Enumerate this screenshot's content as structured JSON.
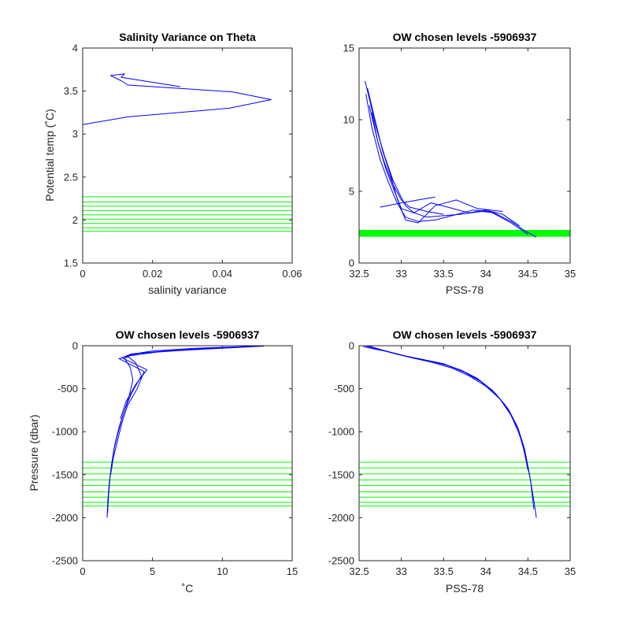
{
  "chart_data": [
    {
      "type": "line",
      "title": "Salinity Variance on Theta",
      "xlabel": "salinity variance",
      "ylabel": "Potential temp (˚C)",
      "xlim": [
        0,
        0.06
      ],
      "ylim": [
        1.5,
        4
      ],
      "xticks": [
        "0",
        "0.02",
        "0.04",
        "0.06"
      ],
      "yticks": [
        "1.5",
        "2",
        "2.5",
        "3",
        "3.5",
        "4"
      ],
      "series": [
        {
          "color": "#0000ff",
          "x": [
            0.0,
            0.0,
            0.0,
            0.0,
            0.0,
            0.0,
            0.0,
            0.0,
            0.0,
            0.0,
            0.0,
            0.0,
            0.0,
            0.0,
            0.0,
            0.013,
            0.042,
            0.054,
            0.043,
            0.013,
            0.011,
            0.008,
            0.012,
            0.011,
            0.028
          ],
          "y": [
            1.78,
            1.86,
            1.9,
            1.95,
            2.0,
            2.05,
            2.1,
            2.15,
            2.2,
            2.25,
            2.4,
            2.6,
            2.8,
            3.0,
            3.11,
            3.2,
            3.3,
            3.4,
            3.49,
            3.57,
            3.62,
            3.68,
            3.7,
            3.66,
            3.55
          ]
        }
      ],
      "hlines": {
        "color": "#00ff00",
        "y": [
          1.87,
          1.91,
          1.96,
          2.01,
          2.06,
          2.11,
          2.16,
          2.21,
          2.27
        ]
      }
    },
    {
      "type": "line",
      "title": "OW chosen levels -5906937",
      "xlabel": "PSS-78",
      "ylabel": "",
      "xlim": [
        32.5,
        35
      ],
      "ylim": [
        0,
        15
      ],
      "xticks": [
        "32.5",
        "33",
        "33.5",
        "34",
        "34.5",
        "35"
      ],
      "yticks": [
        "0",
        "5",
        "10",
        "15"
      ],
      "series": [
        {
          "color": "#0000ff",
          "x": [
            34.6,
            34.45,
            34.3,
            34.1,
            33.95,
            33.7,
            33.5,
            33.3,
            33.15,
            33.05,
            32.98,
            32.9,
            32.8,
            32.7,
            32.62,
            32.57
          ],
          "y": [
            1.8,
            2.3,
            2.9,
            3.5,
            3.6,
            3.4,
            3.3,
            3.2,
            3.5,
            4.0,
            4.8,
            5.8,
            7.5,
            9.5,
            11.5,
            12.7
          ]
        },
        {
          "color": "#0000ff",
          "x": [
            34.5,
            34.3,
            34.05,
            33.85,
            33.6,
            33.4,
            33.2,
            33.05,
            32.95,
            32.85,
            32.75,
            32.65,
            32.58
          ],
          "y": [
            2.0,
            2.8,
            3.6,
            3.7,
            3.3,
            3.0,
            2.9,
            3.2,
            4.2,
            5.6,
            7.2,
            9.5,
            11.8
          ]
        },
        {
          "color": "#0000ff",
          "x": [
            34.4,
            34.2,
            34.0,
            33.8,
            33.55,
            33.35,
            33.15,
            33.0,
            32.92,
            32.82,
            32.72,
            32.62
          ],
          "y": [
            2.6,
            3.4,
            3.7,
            3.5,
            3.9,
            4.2,
            3.5,
            3.8,
            5.0,
            6.5,
            8.5,
            11.0
          ]
        },
        {
          "color": "#0000ff",
          "x": [
            34.2,
            33.9,
            33.65,
            33.4,
            33.2,
            33.05,
            32.95,
            32.88,
            32.78,
            32.68,
            32.6
          ],
          "y": [
            3.6,
            3.8,
            4.4,
            4.0,
            2.8,
            3.0,
            4.5,
            6.0,
            7.8,
            10.2,
            12.2
          ]
        },
        {
          "color": "#0000ff",
          "x": [
            33.5,
            33.3,
            33.1,
            33.0,
            32.9,
            32.8,
            32.72,
            32.65
          ],
          "y": [
            3.4,
            3.6,
            3.9,
            4.4,
            5.5,
            7.0,
            8.5,
            10.5
          ]
        },
        {
          "color": "#0000ff",
          "x": [
            32.75,
            33.0,
            33.2,
            33.4
          ],
          "y": [
            3.9,
            4.2,
            4.4,
            4.6
          ]
        }
      ],
      "hlines": {
        "color": "#00ff00",
        "y": [
          1.87,
          1.91,
          1.96,
          2.01,
          2.06,
          2.11,
          2.16,
          2.21,
          2.27
        ]
      }
    },
    {
      "type": "line",
      "title": "OW chosen levels -5906937",
      "xlabel": "˚C",
      "ylabel": "Pressure (dbar)",
      "xlim": [
        0,
        15
      ],
      "ylim": [
        -2500,
        0
      ],
      "xticks": [
        "0",
        "5",
        "10",
        "15"
      ],
      "yticks": [
        "-2500",
        "-2000",
        "-1500",
        "-1000",
        "-500",
        "0"
      ],
      "series": [
        {
          "color": "#0000ff",
          "x": [
            1.75,
            1.8,
            1.9,
            2.05,
            2.25,
            2.55,
            2.9,
            3.3,
            3.6,
            3.4,
            3.0,
            3.5,
            5.0,
            8.0,
            12.7
          ],
          "y": [
            -2000,
            -1800,
            -1600,
            -1400,
            -1200,
            -1000,
            -800,
            -600,
            -400,
            -250,
            -150,
            -100,
            -60,
            -30,
            -5
          ]
        },
        {
          "color": "#0000ff",
          "x": [
            1.78,
            1.85,
            1.95,
            2.1,
            2.3,
            2.6,
            3.0,
            3.5,
            4.2,
            3.8,
            3.2,
            5.5,
            9.0,
            11.8
          ],
          "y": [
            -1950,
            -1750,
            -1550,
            -1350,
            -1150,
            -950,
            -750,
            -550,
            -350,
            -200,
            -120,
            -70,
            -35,
            -8
          ]
        },
        {
          "color": "#0000ff",
          "x": [
            2.0,
            2.2,
            2.5,
            2.8,
            3.2,
            3.9,
            4.4,
            2.6,
            4.0,
            7.0,
            10.5,
            13.0
          ],
          "y": [
            -1500,
            -1300,
            -1100,
            -900,
            -700,
            -500,
            -300,
            -150,
            -90,
            -55,
            -25,
            -5
          ]
        },
        {
          "color": "#0000ff",
          "x": [
            2.7,
            3.1,
            3.8,
            4.6,
            2.8,
            3.5,
            6.0,
            9.0,
            12.2
          ],
          "y": [
            -850,
            -650,
            -450,
            -280,
            -140,
            -95,
            -60,
            -30,
            -8
          ]
        }
      ],
      "hlines": {
        "color": "#00ff00",
        "y": [
          -1355,
          -1420,
          -1490,
          -1560,
          -1625,
          -1700,
          -1760,
          -1820,
          -1865
        ]
      }
    },
    {
      "type": "line",
      "title": "OW chosen levels -5906937",
      "xlabel": "PSS-78",
      "ylabel": "",
      "xlim": [
        32.5,
        35
      ],
      "ylim": [
        -2500,
        0
      ],
      "xticks": [
        "32.5",
        "33",
        "33.5",
        "34",
        "34.5",
        "35"
      ],
      "yticks": [
        "-2500",
        "-2000",
        "-1500",
        "-1000",
        "-500",
        "0"
      ],
      "series": [
        {
          "color": "#0000ff",
          "x": [
            32.58,
            32.7,
            32.85,
            33.05,
            33.3,
            33.55,
            33.75,
            33.95,
            34.12,
            34.27,
            34.38,
            34.46,
            34.52,
            34.57,
            34.6
          ],
          "y": [
            -5,
            -30,
            -70,
            -120,
            -170,
            -230,
            -310,
            -420,
            -560,
            -740,
            -950,
            -1200,
            -1500,
            -1800,
            -2000
          ]
        },
        {
          "color": "#0000ff",
          "x": [
            32.6,
            32.72,
            32.9,
            33.1,
            33.35,
            33.6,
            33.8,
            34.0,
            34.17,
            34.3,
            34.4,
            34.47,
            34.53,
            34.57
          ],
          "y": [
            -8,
            -40,
            -85,
            -135,
            -190,
            -260,
            -350,
            -470,
            -620,
            -810,
            -1030,
            -1280,
            -1560,
            -1900
          ]
        },
        {
          "color": "#0000ff",
          "x": [
            32.62,
            32.75,
            32.95,
            33.2,
            33.45,
            33.7,
            33.9,
            34.08,
            34.23,
            34.35,
            34.44,
            34.5
          ],
          "y": [
            -5,
            -45,
            -100,
            -150,
            -200,
            -280,
            -380,
            -520,
            -690,
            -900,
            -1150,
            -1450
          ]
        },
        {
          "color": "#0000ff",
          "x": [
            32.55,
            32.66,
            32.8,
            33.0,
            33.25,
            33.5,
            33.72,
            33.92,
            34.1,
            34.25
          ],
          "y": [
            -10,
            -35,
            -60,
            -110,
            -160,
            -210,
            -290,
            -400,
            -540,
            -720
          ]
        }
      ],
      "hlines": {
        "color": "#00ff00",
        "y": [
          -1355,
          -1420,
          -1490,
          -1560,
          -1625,
          -1700,
          -1760,
          -1820,
          -1865
        ]
      }
    }
  ]
}
